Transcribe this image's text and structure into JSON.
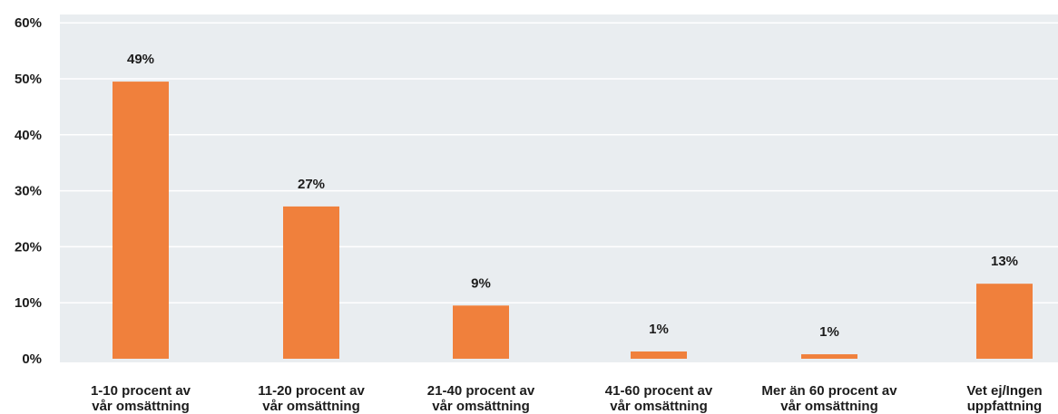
{
  "chart_data": {
    "type": "bar",
    "categories": [
      [
        "1-10 procent av",
        "vår omsättning"
      ],
      [
        "11-20 procent av",
        "vår omsättning"
      ],
      [
        "21-40 procent av",
        "vår omsättning"
      ],
      [
        "41-60 procent av",
        "vår omsättning"
      ],
      [
        "Mer än 60 procent av",
        "vår omsättning"
      ],
      [
        "Vet ej/Ingen",
        "uppfattning"
      ]
    ],
    "values": [
      49.5,
      27.2,
      9.5,
      1.3,
      0.8,
      13.4
    ],
    "data_labels": [
      "49%",
      "27%",
      "9%",
      "1%",
      "1%",
      "13%"
    ],
    "yticks": [
      "0%",
      "10%",
      "20%",
      "30%",
      "40%",
      "50%",
      "60%"
    ],
    "ylim": [
      0,
      62
    ],
    "grid": true,
    "title": "",
    "xlabel": "",
    "ylabel": "",
    "colors": {
      "bar": "#f0803c",
      "plot_background": "#e9edf0",
      "gridline": "#ffffff",
      "text": "#1c1c1c"
    }
  }
}
